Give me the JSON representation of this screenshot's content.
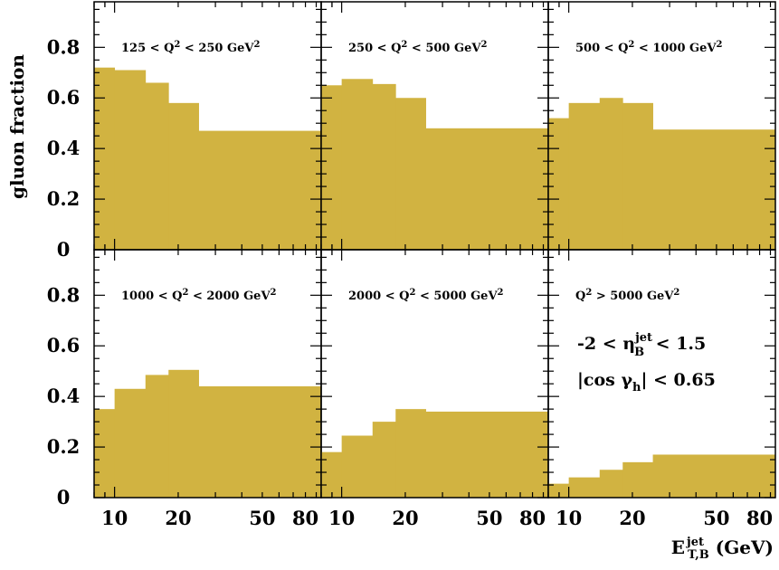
{
  "chart_data": {
    "type": "bar",
    "style": "step-histogram",
    "fill_color": "#d1b341",
    "ylabel": "gluon fraction",
    "xlabel": {
      "base": "E",
      "sup": "jet",
      "sub": "T,B",
      "unit": " (GeV)"
    },
    "xscale": "log",
    "xlim": [
      8,
      95
    ],
    "ylim": [
      0,
      0.98
    ],
    "yticks": [
      {
        "v": 0,
        "label": "0"
      },
      {
        "v": 0.2,
        "label": "0.2"
      },
      {
        "v": 0.4,
        "label": "0.4"
      },
      {
        "v": 0.6,
        "label": "0.6"
      },
      {
        "v": 0.8,
        "label": "0.8"
      }
    ],
    "xticks": [
      {
        "v": 10,
        "label": "10"
      },
      {
        "v": 20,
        "label": "20"
      },
      {
        "v": 50,
        "label": "50"
      },
      {
        "v": 80,
        "label": "80"
      }
    ],
    "bin_edges": [
      8,
      10,
      14,
      18,
      25,
      95
    ],
    "panels": [
      {
        "label": {
          "pre": "125 < Q",
          "sup": "2",
          "mid": " < 250 GeV",
          "sup2": "2"
        },
        "values": [
          0.72,
          0.71,
          0.66,
          0.58,
          0.47
        ]
      },
      {
        "label": {
          "pre": "250 < Q",
          "sup": "2",
          "mid": " < 500 GeV",
          "sup2": "2"
        },
        "values": [
          0.65,
          0.675,
          0.655,
          0.6,
          0.48
        ]
      },
      {
        "label": {
          "pre": "500 < Q",
          "sup": "2",
          "mid": " < 1000 GeV",
          "sup2": "2"
        },
        "values": [
          0.52,
          0.58,
          0.6,
          0.58,
          0.475
        ]
      },
      {
        "label": {
          "pre": "1000 < Q",
          "sup": "2",
          "mid": " < 2000 GeV",
          "sup2": "2"
        },
        "values": [
          0.35,
          0.43,
          0.485,
          0.505,
          0.44
        ]
      },
      {
        "label": {
          "pre": "2000 < Q",
          "sup": "2",
          "mid": " < 5000 GeV",
          "sup2": "2"
        },
        "values": [
          0.18,
          0.245,
          0.3,
          0.35,
          0.34
        ]
      },
      {
        "label": {
          "pre": "Q",
          "sup": "2",
          "mid": " > 5000 GeV",
          "sup2": "2"
        },
        "values": [
          0.055,
          0.08,
          0.11,
          0.14,
          0.17
        ]
      }
    ],
    "annotations": {
      "eta_cut": {
        "pre": "-2 < η",
        "sup": "jet",
        "sub": "B",
        "post": "< 1.5"
      },
      "cos_cut": {
        "pre": "|cos γ",
        "sub": "h",
        "post": "| < 0.65"
      }
    }
  }
}
